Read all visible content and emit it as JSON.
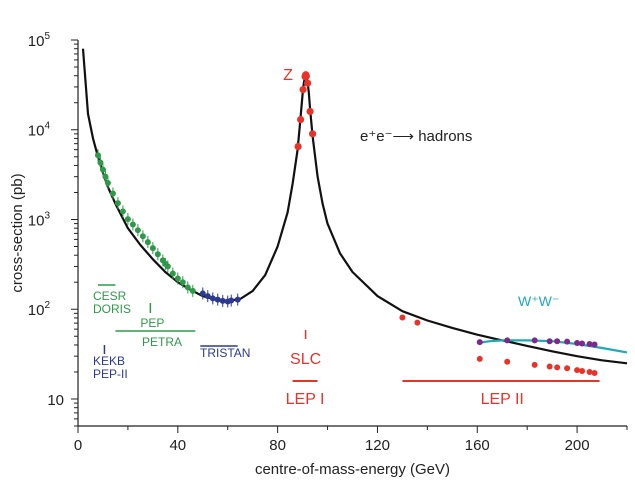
{
  "chart_data": {
    "type": "line",
    "title": "",
    "xlabel": "centre-of-mass-energy (GeV)",
    "ylabel": "cross-section (pb)",
    "xlim": [
      0,
      220
    ],
    "ylim": [
      5,
      100000
    ],
    "yscale": "log",
    "xticks": [
      {
        "v": 0,
        "label": "0"
      },
      {
        "v": 40,
        "label": "40"
      },
      {
        "v": 80,
        "label": "80"
      },
      {
        "v": 120,
        "label": "120"
      },
      {
        "v": 160,
        "label": "160"
      },
      {
        "v": 200,
        "label": "200"
      }
    ],
    "ytick_exponents": [
      "5",
      "4",
      "3",
      "2"
    ],
    "ytick_base": "10",
    "ytick_plain": "10",
    "reaction_label": "e⁺e⁻⟶ hadrons",
    "peak_label": "Z",
    "ww_label": "W⁺W⁻",
    "colors": {
      "theory": "#111111",
      "low": "#2e9a49",
      "mid": "#2b3a8f",
      "z": "#e8332a",
      "ww_curve": "#20a9b5",
      "ww_points": "#7b2a8c"
    },
    "series": [
      {
        "name": "theory",
        "color": "#111111",
        "x": [
          2,
          4,
          6,
          8,
          10,
          12,
          15,
          20,
          25,
          30,
          35,
          40,
          45,
          50,
          55,
          60,
          65,
          70,
          75,
          80,
          84,
          86,
          88,
          89,
          90,
          90.5,
          91,
          91.2,
          91.5,
          92,
          92.5,
          93,
          94,
          96,
          98,
          100,
          105,
          110,
          120,
          130,
          140,
          150,
          160,
          170,
          180,
          190,
          200,
          210,
          220
        ],
        "values": [
          80000,
          15000,
          8000,
          5000,
          3300,
          2300,
          1500,
          800,
          520,
          360,
          260,
          200,
          165,
          140,
          128,
          124,
          130,
          160,
          240,
          500,
          1200,
          2500,
          6000,
          12000,
          25000,
          33000,
          39000,
          40000,
          39000,
          34000,
          26000,
          17000,
          8500,
          3000,
          1500,
          900,
          420,
          260,
          140,
          95,
          75,
          62,
          52,
          45,
          39,
          34,
          30,
          27,
          25
        ]
      },
      {
        "name": "W+W- theory",
        "color": "#20a9b5",
        "x": [
          160,
          165,
          170,
          175,
          180,
          190,
          200,
          210,
          220
        ],
        "values": [
          42,
          44,
          45,
          45,
          45,
          44,
          41,
          37,
          33
        ]
      },
      {
        "name": "CESR/DORIS/PEP/PETRA data",
        "color": "#2e9a49",
        "x": [
          8,
          9,
          10,
          11,
          12,
          14,
          16,
          18,
          20,
          22,
          24,
          26,
          28,
          30,
          32,
          34,
          35,
          36,
          38,
          40,
          42,
          44,
          46
        ],
        "values": [
          5200,
          4300,
          3600,
          3000,
          2550,
          1950,
          1520,
          1230,
          1010,
          880,
          760,
          650,
          560,
          480,
          410,
          350,
          320,
          300,
          250,
          220,
          200,
          175,
          160
        ]
      },
      {
        "name": "TRISTAN data",
        "color": "#2b3a8f",
        "x": [
          50,
          52,
          54,
          56,
          58,
          60,
          61.4,
          64
        ],
        "values": [
          150,
          140,
          132,
          128,
          124,
          122,
          125,
          128
        ]
      },
      {
        "name": "LEP/SLC Z data",
        "color": "#e8332a",
        "x": [
          88.2,
          89.2,
          90.2,
          91.0,
          91.2,
          91.3,
          91.5,
          92.0,
          93.0,
          94.0
        ],
        "values": [
          6500,
          13000,
          28000,
          39000,
          40500,
          41000,
          39500,
          33000,
          16000,
          9000
        ]
      },
      {
        "name": "LEP II data",
        "color": "#e8332a",
        "x": [
          130,
          136,
          161,
          172,
          183,
          189,
          192,
          196,
          200,
          202,
          205,
          207
        ],
        "values": [
          81,
          71,
          28,
          26,
          24,
          23,
          22.5,
          22,
          21,
          20.5,
          20,
          19.5
        ]
      },
      {
        "name": "LEP II W+W- data",
        "color": "#7b2a8c",
        "x": [
          161,
          172,
          183,
          189,
          192,
          196,
          200,
          202,
          205,
          207
        ],
        "values": [
          43,
          45,
          45,
          44,
          44,
          43.5,
          42,
          41.5,
          41,
          40.5
        ]
      }
    ],
    "annotations": [
      {
        "text": "CESR",
        "color": "#2e9a49",
        "range": [
          8,
          15
        ]
      },
      {
        "text": "DORIS",
        "color": "#2e9a49"
      },
      {
        "text": "PEP",
        "color": "#2e9a49",
        "range": [
          29,
          29
        ]
      },
      {
        "text": "PETRA",
        "color": "#2e9a49",
        "range": [
          15,
          47
        ]
      },
      {
        "text": "TRISTAN",
        "color": "#2b3a8f",
        "range": [
          49,
          64
        ]
      },
      {
        "text": "KEKB",
        "color": "#2b3a8f",
        "range": [
          10.6,
          10.6
        ]
      },
      {
        "text": "PEP-II",
        "color": "#2b3a8f"
      },
      {
        "text": "SLC",
        "color": "#e8332a",
        "range": [
          91.2,
          91.2
        ]
      },
      {
        "text": "LEP I",
        "color": "#e8332a",
        "range": [
          86,
          96
        ]
      },
      {
        "text": "LEP II",
        "color": "#e8332a",
        "range": [
          130,
          209
        ]
      }
    ]
  }
}
